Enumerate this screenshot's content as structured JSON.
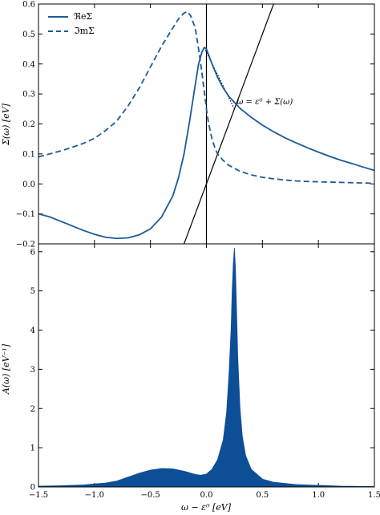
{
  "colors": {
    "series": "#1a5a9a",
    "fill": "#0d4f97",
    "line": "#000000",
    "background": "#ffffff"
  },
  "chart_data": [
    {
      "type": "line",
      "xlim": [
        -1.5,
        1.5
      ],
      "ylim": [
        -0.2,
        0.6
      ],
      "xticks": [
        -1.5,
        -1.0,
        -0.5,
        0.0,
        0.5,
        1.0,
        1.5
      ],
      "xtick_labels_visible": false,
      "yticks": [
        -0.2,
        -0.1,
        0.0,
        0.1,
        0.2,
        0.3,
        0.4,
        0.5,
        0.6
      ],
      "ytick_labels": [
        "−0.2",
        "−0.1",
        "0.0",
        "0.1",
        "0.2",
        "0.3",
        "0.4",
        "0.5",
        "0.6"
      ],
      "ylabel": "Σ(ω) [eV]",
      "xlabel": "",
      "grid": false,
      "legend_position": "top-left",
      "series": [
        {
          "name": "ℜeΣ",
          "style": "solid",
          "x": [
            -1.5,
            -1.4,
            -1.3,
            -1.2,
            -1.1,
            -1.0,
            -0.9,
            -0.8,
            -0.7,
            -0.6,
            -0.5,
            -0.4,
            -0.3,
            -0.25,
            -0.2,
            -0.15,
            -0.1,
            -0.07,
            -0.04,
            -0.02,
            0.0,
            0.02,
            0.05,
            0.1,
            0.15,
            0.2,
            0.3,
            0.4,
            0.5,
            0.6,
            0.7,
            0.8,
            0.9,
            1.0,
            1.1,
            1.2,
            1.3,
            1.4,
            1.5
          ],
          "y": [
            -0.1,
            -0.11,
            -0.125,
            -0.14,
            -0.155,
            -0.168,
            -0.178,
            -0.182,
            -0.18,
            -0.17,
            -0.15,
            -0.11,
            -0.04,
            0.02,
            0.1,
            0.21,
            0.33,
            0.4,
            0.44,
            0.455,
            0.45,
            0.43,
            0.4,
            0.355,
            0.32,
            0.292,
            0.252,
            0.222,
            0.196,
            0.174,
            0.154,
            0.137,
            0.121,
            0.106,
            0.092,
            0.079,
            0.068,
            0.056,
            0.045
          ]
        },
        {
          "name": "ℑmΣ",
          "style": "dashed",
          "x": [
            -1.5,
            -1.4,
            -1.3,
            -1.2,
            -1.1,
            -1.0,
            -0.9,
            -0.8,
            -0.7,
            -0.6,
            -0.5,
            -0.4,
            -0.3,
            -0.25,
            -0.2,
            -0.17,
            -0.14,
            -0.1,
            -0.07,
            -0.04,
            0.0,
            0.02,
            0.05,
            0.08,
            0.1,
            0.15,
            0.2,
            0.3,
            0.4,
            0.5,
            0.6,
            0.7,
            0.8,
            0.9,
            1.0,
            1.1,
            1.2,
            1.3,
            1.4,
            1.5
          ],
          "y": [
            0.09,
            0.1,
            0.11,
            0.122,
            0.135,
            0.152,
            0.178,
            0.21,
            0.26,
            0.32,
            0.39,
            0.46,
            0.52,
            0.55,
            0.57,
            0.575,
            0.56,
            0.52,
            0.45,
            0.37,
            0.25,
            0.2,
            0.15,
            0.115,
            0.1,
            0.078,
            0.062,
            0.042,
            0.03,
            0.022,
            0.017,
            0.013,
            0.01,
            0.008,
            0.007,
            0.006,
            0.005,
            0.004,
            0.003,
            0.002
          ]
        }
      ],
      "lines": [
        {
          "label": "",
          "x": [
            -0.2,
            0.6
          ],
          "y": [
            -0.2,
            0.6
          ],
          "style": "solid"
        },
        {
          "label": "",
          "x": [
            0.0,
            0.0
          ],
          "y": [
            -0.2,
            0.6
          ],
          "style": "solid"
        },
        {
          "label": "",
          "x": [
            -0.02,
            0.25
          ],
          "y": [
            0.455,
            0.25
          ],
          "style": "dotted"
        }
      ],
      "annotations": [
        {
          "text": "ω = ε⁰ + Σ(ω)",
          "x": 0.27,
          "y": 0.265
        }
      ]
    },
    {
      "type": "area",
      "xlim": [
        -1.5,
        1.5
      ],
      "ylim": [
        0,
        6.2
      ],
      "xticks": [
        -1.5,
        -1.0,
        -0.5,
        0.0,
        0.5,
        1.0,
        1.5
      ],
      "xtick_labels": [
        "−1.5",
        "−1.0",
        "−0.5",
        "0.0",
        "0.5",
        "1.0",
        "1.5"
      ],
      "yticks": [
        0,
        1,
        2,
        3,
        4,
        5,
        6
      ],
      "ytick_labels": [
        "0",
        "1",
        "2",
        "3",
        "4",
        "5",
        "6"
      ],
      "xlabel": "ω − ε⁰ [eV]",
      "ylabel": "A(ω) [eV⁻¹]",
      "grid": false,
      "series": [
        {
          "x": [
            -1.5,
            -1.3,
            -1.1,
            -0.9,
            -0.8,
            -0.7,
            -0.6,
            -0.5,
            -0.4,
            -0.3,
            -0.2,
            -0.15,
            -0.1,
            -0.05,
            0.0,
            0.05,
            0.1,
            0.15,
            0.18,
            0.2,
            0.22,
            0.23,
            0.24,
            0.25,
            0.26,
            0.27,
            0.28,
            0.3,
            0.32,
            0.35,
            0.4,
            0.5,
            0.6,
            0.8,
            1.0,
            1.2,
            1.5
          ],
          "y": [
            0.02,
            0.03,
            0.05,
            0.1,
            0.15,
            0.25,
            0.35,
            0.43,
            0.47,
            0.46,
            0.4,
            0.36,
            0.32,
            0.3,
            0.33,
            0.45,
            0.7,
            1.2,
            1.9,
            2.8,
            4.0,
            5.0,
            5.7,
            6.1,
            5.5,
            4.4,
            3.3,
            2.0,
            1.3,
            0.8,
            0.45,
            0.2,
            0.12,
            0.06,
            0.04,
            0.02,
            0.01
          ]
        }
      ]
    }
  ]
}
